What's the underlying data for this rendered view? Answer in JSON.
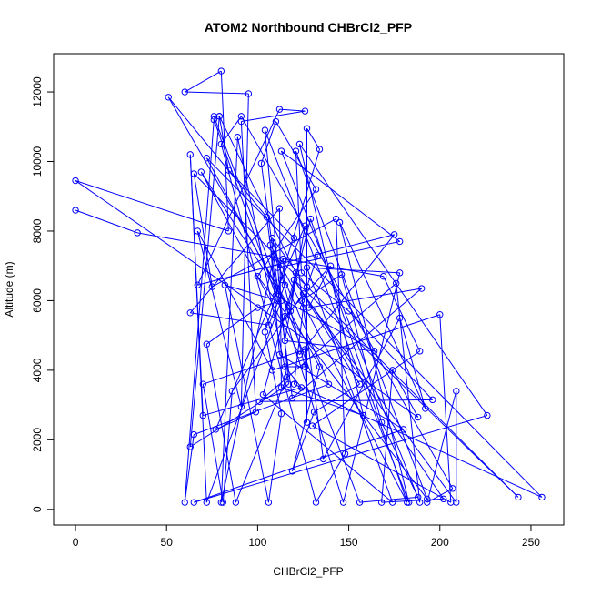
{
  "chart_data": {
    "type": "line",
    "title": "ATOM2 Northbound CHBrCl2_PFP",
    "xlabel": "CHBrCl2_PFP",
    "ylabel": "Altitude (m)",
    "xlim": [
      -12,
      268
    ],
    "ylim": [
      -450,
      13100
    ],
    "xticks": [
      0,
      50,
      100,
      150,
      200,
      250
    ],
    "yticks": [
      0,
      2000,
      4000,
      6000,
      8000,
      10000,
      12000
    ],
    "grid": false,
    "legend": "none",
    "series_color": "#0000ff",
    "marker": "open-circle",
    "series": [
      {
        "values": [
          [
            0,
            8600
          ],
          [
            34,
            7950
          ],
          [
            169,
            6700
          ],
          [
            189,
            4550
          ],
          [
            130,
            2400
          ],
          [
            206,
            200
          ],
          [
            200,
            5600
          ],
          [
            108,
            4000
          ],
          [
            67,
            8000
          ],
          [
            91,
            2950
          ],
          [
            95,
            11950
          ],
          [
            60,
            12000
          ],
          [
            80,
            12600
          ],
          [
            84,
            8000
          ],
          [
            0,
            9450
          ],
          [
            188,
            2650
          ],
          [
            174,
            4000
          ],
          [
            168,
            200
          ],
          [
            202,
            300
          ],
          [
            120,
            6600
          ],
          [
            243,
            350
          ],
          [
            65,
            9650
          ],
          [
            75,
            6400
          ],
          [
            143,
            8350
          ],
          [
            148,
            1600
          ],
          [
            132,
            200
          ],
          [
            80,
            10500
          ],
          [
            91,
            11300
          ],
          [
            207,
            600
          ],
          [
            193,
            200
          ],
          [
            209,
            3400
          ],
          [
            209,
            200
          ],
          [
            125,
            6200
          ],
          [
            86,
            3400
          ],
          [
            81,
            200
          ],
          [
            70,
            3600
          ],
          [
            126,
            4600
          ],
          [
            127,
            2500
          ],
          [
            127,
            10950
          ],
          [
            134,
            10350
          ],
          [
            104,
            5100
          ],
          [
            113,
            2750
          ],
          [
            106,
            200
          ],
          [
            82,
            6450
          ],
          [
            111,
            6000
          ],
          [
            105,
            8400
          ],
          [
            51,
            11850
          ],
          [
            117,
            5850
          ],
          [
            129,
            8350
          ],
          [
            182,
            200
          ],
          [
            124,
            6000
          ],
          [
            146,
            6750
          ],
          [
            168,
            2500
          ],
          [
            188,
            350
          ],
          [
            156,
            200
          ],
          [
            76,
            11300
          ],
          [
            79,
            11300
          ],
          [
            84,
            9750
          ],
          [
            120,
            7800
          ],
          [
            136,
            1450
          ],
          [
            178,
            5500
          ],
          [
            192,
            2900
          ],
          [
            145,
            8250
          ],
          [
            183,
            200
          ],
          [
            104,
            10900
          ],
          [
            117,
            3600
          ],
          [
            63,
            1800
          ],
          [
            79,
            11300
          ],
          [
            121,
            6800
          ],
          [
            103,
            3300
          ],
          [
            174,
            200
          ],
          [
            127,
            6950
          ],
          [
            178,
            6800
          ],
          [
            147,
            200
          ],
          [
            115,
            5550
          ],
          [
            140,
            7000
          ],
          [
            128,
            5800
          ],
          [
            190,
            6350
          ],
          [
            119,
            3200
          ],
          [
            102,
            9950
          ],
          [
            110,
            11150
          ],
          [
            132,
            9200
          ],
          [
            100,
            6700
          ],
          [
            193,
            300
          ],
          [
            121,
            10300
          ],
          [
            124,
            6800
          ],
          [
            150,
            5700
          ],
          [
            196,
            3150
          ],
          [
            101,
            3100
          ],
          [
            176,
            6500
          ],
          [
            189,
            200
          ],
          [
            113,
            10300
          ],
          [
            178,
            7700
          ],
          [
            111,
            6950
          ],
          [
            114,
            7200
          ],
          [
            115,
            6450
          ],
          [
            106,
            5300
          ],
          [
            63,
            5650
          ],
          [
            112,
            8650
          ],
          [
            113,
            3500
          ],
          [
            158,
            2700
          ],
          [
            123,
            10500
          ],
          [
            226,
            2700
          ],
          [
            65,
            200
          ],
          [
            180,
            2300
          ],
          [
            112,
            4450
          ],
          [
            107,
            7600
          ],
          [
            125,
            5800
          ],
          [
            120,
            3600
          ],
          [
            256,
            350
          ],
          [
            72,
            10100
          ],
          [
            134,
            4100
          ],
          [
            119,
            1100
          ],
          [
            131,
            2800
          ],
          [
            156,
            3600
          ],
          [
            120,
            6600
          ],
          [
            118,
            5700
          ],
          [
            69,
            9700
          ],
          [
            123,
            4450
          ],
          [
            175,
            7900
          ],
          [
            67,
            6450
          ],
          [
            112,
            11500
          ],
          [
            126,
            11450
          ],
          [
            91,
            11150
          ],
          [
            99,
            2800
          ],
          [
            77,
            2300
          ],
          [
            113,
            6600
          ],
          [
            126,
            8150
          ],
          [
            115,
            4850
          ],
          [
            164,
            4550
          ],
          [
            110,
            6150
          ],
          [
            76,
            11200
          ],
          [
            60,
            200
          ],
          [
            65,
            2150
          ],
          [
            139,
            3600
          ],
          [
            109,
            7300
          ],
          [
            80,
            200
          ],
          [
            89,
            10700
          ],
          [
            116,
            3800
          ],
          [
            88,
            200
          ],
          [
            72,
            4750
          ],
          [
            100,
            5800
          ],
          [
            113,
            6000
          ],
          [
            72,
            200
          ],
          [
            63,
            10200
          ],
          [
            70,
            2700
          ],
          [
            124,
            3500
          ],
          [
            115,
            4100
          ],
          [
            126,
            4100
          ],
          [
            108,
            7800
          ],
          [
            127,
            6400
          ],
          [
            133,
            7300
          ]
        ]
      }
    ]
  }
}
